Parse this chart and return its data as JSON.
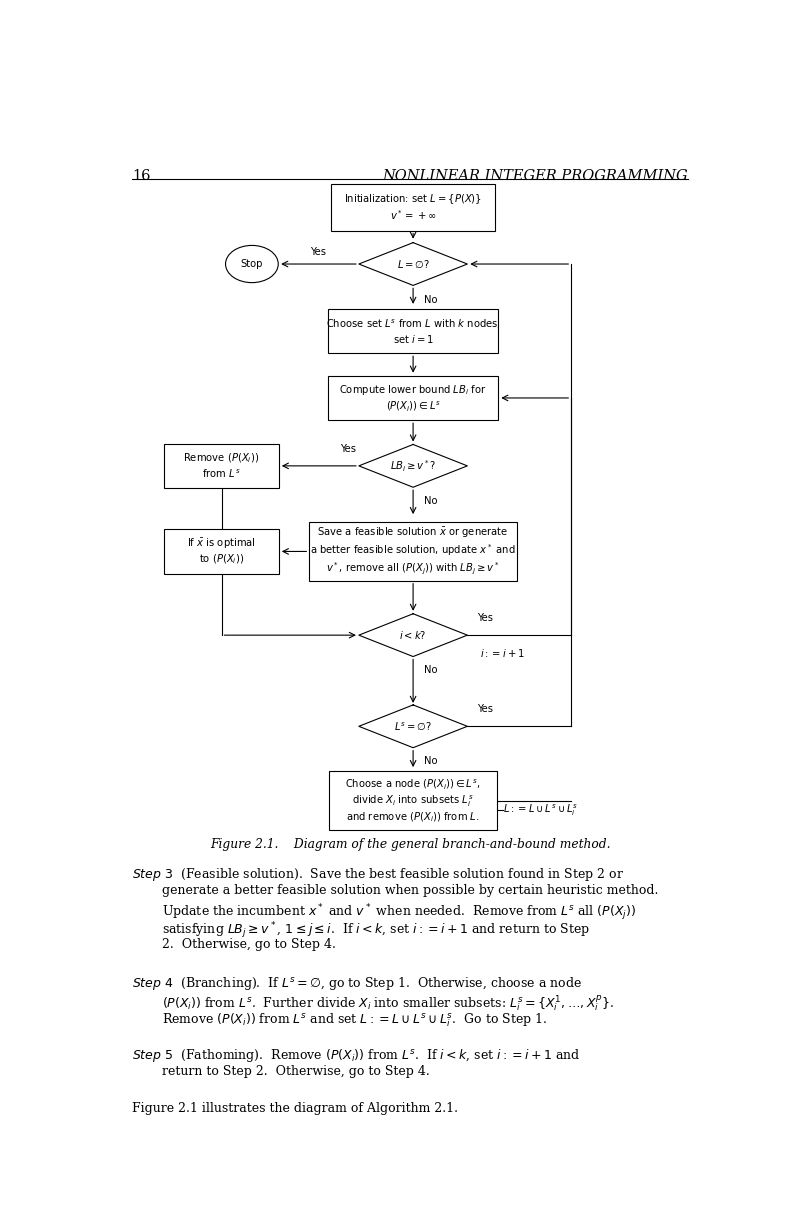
{
  "page_number": "16",
  "header_title": "NONLINEAR INTEGER PROGRAMMING",
  "figure_caption": "Figure 2.1.    Diagram of the general branch-and-bound method.",
  "background_color": "#ffffff",
  "text_color": "#000000"
}
